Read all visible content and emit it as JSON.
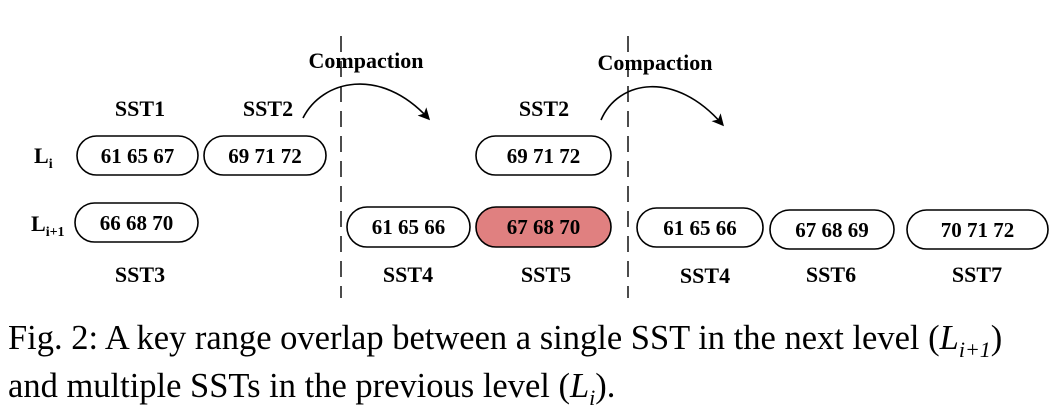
{
  "figure": {
    "operation_label": "Compaction",
    "levels": {
      "upper": "L",
      "upper_sub": "i",
      "lower": "L",
      "lower_sub": "i+1"
    },
    "states": [
      {
        "upper": [
          {
            "name": "SST1",
            "keys": "61 65 67"
          },
          {
            "name": "SST2",
            "keys": "69 71 72"
          }
        ],
        "lower": [
          {
            "name": "SST3",
            "keys": "66 68 70"
          }
        ]
      },
      {
        "upper": [
          {
            "name": "SST2",
            "keys": "69 71 72"
          }
        ],
        "lower": [
          {
            "name": "SST4",
            "keys": "61 65 66"
          },
          {
            "name": "SST5",
            "keys": "67 68 70",
            "highlight": true,
            "highlight_color": "#e08080"
          }
        ]
      },
      {
        "upper": [],
        "lower": [
          {
            "name": "SST4",
            "keys": "61 65 66"
          },
          {
            "name": "SST6",
            "keys": "67 68 69"
          },
          {
            "name": "SST7",
            "keys": "70 71 72"
          }
        ]
      }
    ]
  },
  "caption": {
    "label": "Fig. 2:",
    "text_1": "A key range overlap between a single SST in the next level (",
    "math_1": "L",
    "math_1_sub": "i+1",
    "text_2": ") and multiple SSTs in the previous level (",
    "math_2": "L",
    "math_2_sub": "i",
    "text_3": ")."
  }
}
